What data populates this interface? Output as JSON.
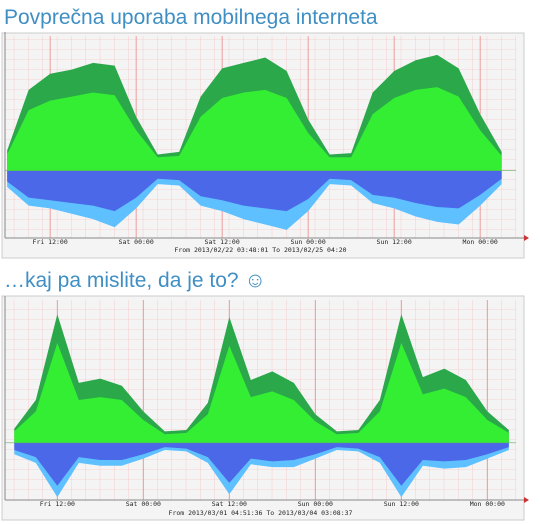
{
  "chart_data": [
    {
      "type": "area",
      "title": "Povprečna uporaba mobilnega interneta",
      "xlabel": "From 2013/02/22 03:48:01 To 2013/02/25 04:20",
      "x": [
        6,
        9,
        12,
        15,
        18,
        21,
        24,
        27,
        30,
        33,
        36,
        39,
        42,
        45,
        48,
        51,
        54,
        57,
        60,
        63,
        66,
        69,
        72,
        75
      ],
      "series": [
        {
          "color": "#2aa84a",
          "values": [
            15,
            60,
            72,
            75,
            80,
            78,
            40,
            12,
            14,
            55,
            76,
            80,
            84,
            74,
            38,
            12,
            13,
            58,
            74,
            82,
            86,
            76,
            42,
            14
          ]
        },
        {
          "color": "#33ee33",
          "values": [
            12,
            45,
            52,
            55,
            58,
            56,
            30,
            10,
            11,
            40,
            54,
            58,
            60,
            54,
            28,
            10,
            10,
            42,
            54,
            60,
            62,
            55,
            30,
            11
          ]
        },
        {
          "color": "#5ec0ff",
          "values": [
            -12,
            -26,
            -28,
            -32,
            -36,
            -42,
            -28,
            -10,
            -11,
            -26,
            -30,
            -36,
            -40,
            -44,
            -30,
            -10,
            -11,
            -24,
            -28,
            -34,
            -38,
            -40,
            -26,
            -10
          ]
        },
        {
          "color": "#4a68e8",
          "values": [
            -8,
            -20,
            -22,
            -24,
            -26,
            -30,
            -20,
            -6,
            -7,
            -19,
            -22,
            -26,
            -28,
            -30,
            -21,
            -6,
            -7,
            -18,
            -20,
            -24,
            -27,
            -28,
            -18,
            -6
          ]
        }
      ],
      "xlim": [
        5.7,
        77
      ],
      "ylim": [
        -50,
        100
      ],
      "xticks": [
        {
          "value": 12,
          "label": "Fri 12:00"
        },
        {
          "value": 24,
          "label": "Sat 00:00"
        },
        {
          "value": 36,
          "label": "Sat 12:00"
        },
        {
          "value": 48,
          "label": "Sun 00:00"
        },
        {
          "value": 60,
          "label": "Sun 12:00"
        },
        {
          "value": 72,
          "label": "Mon 00:00"
        }
      ],
      "grid": true
    },
    {
      "type": "area",
      "title": "…kaj pa mislite, da je to? ☺",
      "xlabel": "From 2013/03/01 04:51:36 To 2013/03/04 03:08:37",
      "x": [
        6,
        9,
        12,
        15,
        18,
        21,
        24,
        27,
        30,
        33,
        36,
        39,
        42,
        45,
        48,
        51,
        54,
        57,
        60,
        63,
        66,
        69,
        72,
        75
      ],
      "series": [
        {
          "color": "#2aa84a",
          "values": [
            10,
            30,
            90,
            42,
            45,
            40,
            22,
            8,
            9,
            28,
            88,
            44,
            50,
            42,
            20,
            8,
            9,
            30,
            90,
            46,
            52,
            44,
            22,
            9
          ]
        },
        {
          "color": "#33ee33",
          "values": [
            8,
            22,
            70,
            30,
            32,
            30,
            16,
            6,
            7,
            20,
            68,
            32,
            36,
            30,
            15,
            6,
            7,
            22,
            70,
            34,
            38,
            32,
            16,
            7
          ]
        },
        {
          "color": "#5ec0ff",
          "values": [
            -8,
            -14,
            -38,
            -14,
            -16,
            -16,
            -11,
            -5,
            -6,
            -14,
            -36,
            -15,
            -17,
            -17,
            -11,
            -5,
            -6,
            -14,
            -38,
            -16,
            -18,
            -17,
            -11,
            -5
          ]
        },
        {
          "color": "#4a68e8",
          "values": [
            -5,
            -10,
            -30,
            -10,
            -12,
            -12,
            -8,
            -3,
            -4,
            -10,
            -28,
            -11,
            -13,
            -12,
            -8,
            -3,
            -4,
            -10,
            -30,
            -12,
            -13,
            -12,
            -8,
            -3
          ]
        }
      ],
      "xlim": [
        4.7,
        76
      ],
      "ylim": [
        -40,
        100
      ],
      "xticks": [
        {
          "value": 12,
          "label": "Fri 12:00"
        },
        {
          "value": 24,
          "label": "Sat 00:00"
        },
        {
          "value": 36,
          "label": "Sat 12:00"
        },
        {
          "value": 48,
          "label": "Sun 00:00"
        },
        {
          "value": 60,
          "label": "Sun 12:00"
        },
        {
          "value": 72,
          "label": "Mon 00:00"
        }
      ],
      "grid": true
    }
  ]
}
